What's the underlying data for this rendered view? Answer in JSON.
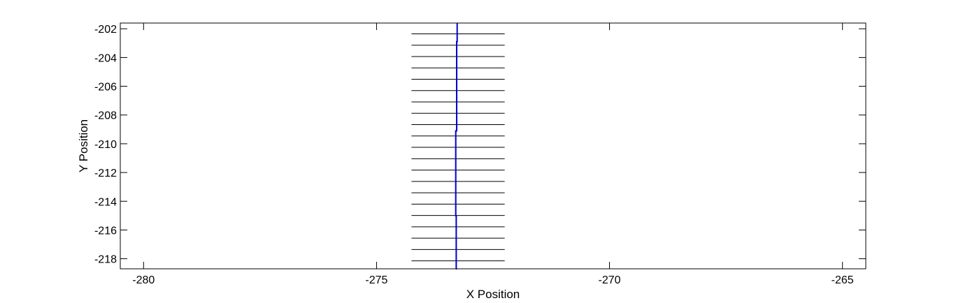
{
  "chart_data": {
    "type": "line",
    "title": "",
    "xlabel": "X Position",
    "ylabel": "Y Position",
    "xlim": [
      -280.5,
      -264.5
    ],
    "ylim": [
      -218.7,
      -201.6
    ],
    "xticks": [
      -280,
      -275,
      -270,
      -265
    ],
    "yticks": [
      -202,
      -204,
      -206,
      -208,
      -210,
      -212,
      -214,
      -216,
      -218
    ],
    "xtick_labels": [
      "-280",
      "-275",
      "-270",
      "-265"
    ],
    "ytick_labels": [
      "-202",
      "-204",
      "-206",
      "-208",
      "-210",
      "-212",
      "-214",
      "-216",
      "-218"
    ],
    "grid": false,
    "box": true,
    "series": [
      {
        "color": "#0000cc",
        "style": "solid",
        "x": [
          -273.27,
          -273.27,
          -273.28,
          -273.28,
          -273.3,
          -273.3,
          -273.29,
          -273.29,
          -273.3
        ],
        "y": [
          -201.6,
          -202.9,
          -202.9,
          -209.1,
          -209.1,
          -215.0,
          -215.0,
          -218.7,
          -218.7
        ]
      }
    ],
    "horizontal_segments": {
      "color": "#000000",
      "x_start": -274.25,
      "x_end": -272.25,
      "y": [
        -202.35,
        -203.14,
        -203.93,
        -204.72,
        -205.51,
        -206.3,
        -207.09,
        -207.88,
        -208.67,
        -209.46,
        -210.25,
        -211.04,
        -211.83,
        -212.62,
        -213.41,
        -214.2,
        -214.99,
        -215.78,
        -216.57,
        -217.36,
        -218.15
      ]
    }
  }
}
